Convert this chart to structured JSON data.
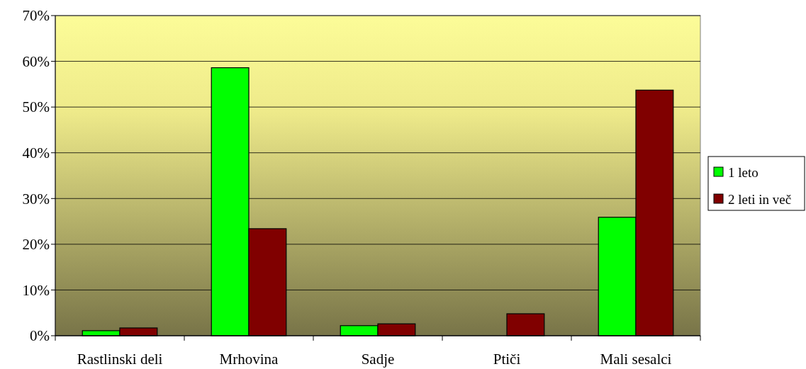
{
  "chart_data": {
    "type": "bar",
    "categories": [
      "Rastlinski deli",
      "Mrhovina",
      "Sadje",
      "Ptiči",
      "Mali sesalci"
    ],
    "series": [
      {
        "name": "1 leto",
        "color": "#00ff00",
        "values": [
          1.1,
          58.6,
          2.2,
          0,
          25.9
        ]
      },
      {
        "name": "2 leti in več",
        "color": "#800000",
        "values": [
          1.7,
          23.4,
          2.6,
          4.8,
          53.7
        ]
      }
    ],
    "ylim": [
      0,
      70
    ],
    "yticks": [
      {
        "value": 0,
        "label": "0%"
      },
      {
        "value": 10,
        "label": "10%"
      },
      {
        "value": 20,
        "label": "20%"
      },
      {
        "value": 30,
        "label": "30%"
      },
      {
        "value": 40,
        "label": "40%"
      },
      {
        "value": 50,
        "label": "50%"
      },
      {
        "value": 60,
        "label": "60%"
      },
      {
        "value": 70,
        "label": "70%"
      }
    ],
    "grid": "y",
    "legend": "right"
  }
}
